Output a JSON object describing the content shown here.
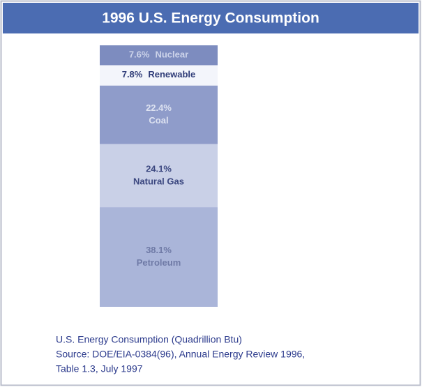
{
  "chart_data": {
    "type": "stacked-bar",
    "title": "1996 U.S. Energy Consumption",
    "series": [
      {
        "name": "Nuclear",
        "color": "#7d8cbf",
        "text_color": "#cdd4ea",
        "values": [
          7.6
        ],
        "value_labels": [
          "7.6%"
        ]
      },
      {
        "name": "Renewable",
        "color": "#f3f5fb",
        "text_color": "#2f3c78",
        "values": [
          7.8
        ],
        "value_labels": [
          "7.8%"
        ]
      },
      {
        "name": "Coal",
        "color": "#8f9cca",
        "text_color": "#dde2f1",
        "values": [
          22.4
        ],
        "value_labels": [
          "22.4%"
        ]
      },
      {
        "name": "Natural Gas",
        "color": "#c9d0e7",
        "text_color": "#3c4880",
        "values": [
          24.1
        ],
        "value_labels": [
          "24.1%"
        ]
      },
      {
        "name": "Petroleum",
        "color": "#aab5d9",
        "text_color": "#6f7aa6",
        "values": [
          38.1
        ],
        "value_labels": [
          "38.1%"
        ]
      }
    ],
    "caption": [
      "U.S. Energy Consumption (Quadrillion Btu)",
      "Source:  DOE/EIA-0384(96), Annual Energy Review 1996,",
      "Table 1.3, July 1997"
    ]
  }
}
